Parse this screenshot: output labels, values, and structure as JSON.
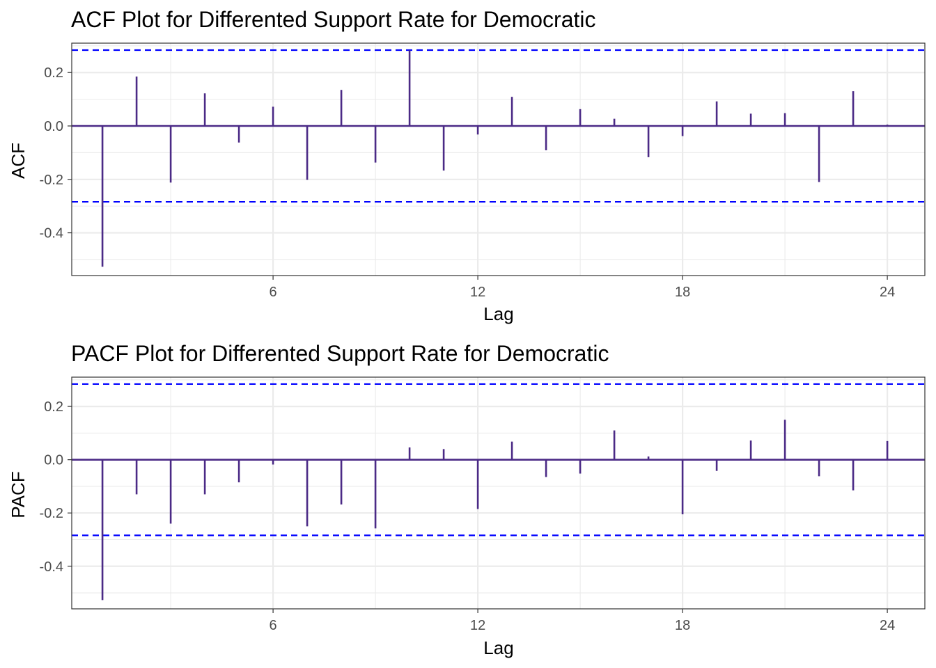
{
  "chart_data": [
    {
      "type": "bar",
      "title": "ACF Plot for Differented Support Rate for Democratic",
      "xlabel": "Lag",
      "ylabel": "ACF",
      "x_ticks": [
        "6",
        "12",
        "18",
        "24"
      ],
      "y_ticks": [
        "-0.4",
        "-0.2",
        "0.0",
        "0.2"
      ],
      "xlim": [
        0.1,
        25.1
      ],
      "ylim": [
        -0.56,
        0.31
      ],
      "grid": true,
      "confidence_limit": 0.284,
      "colors": {
        "bars": "#4b2a86",
        "confidence": "#0000ff",
        "grid": "#ebebeb"
      },
      "lags": [
        1,
        2,
        3,
        4,
        5,
        6,
        7,
        8,
        9,
        10,
        11,
        12,
        13,
        14,
        15,
        16,
        17,
        18,
        19,
        20,
        21,
        22,
        23,
        24
      ],
      "values": [
        -0.527,
        0.185,
        -0.212,
        0.122,
        -0.062,
        0.072,
        -0.202,
        0.135,
        -0.137,
        0.283,
        -0.167,
        -0.032,
        0.109,
        -0.091,
        0.063,
        0.027,
        -0.117,
        -0.038,
        0.092,
        0.046,
        0.048,
        -0.21,
        0.13,
        0.005
      ]
    },
    {
      "type": "bar",
      "title": "PACF Plot for Differented Support Rate for Democratic",
      "xlabel": "Lag",
      "ylabel": "PACF",
      "x_ticks": [
        "6",
        "12",
        "18",
        "24"
      ],
      "y_ticks": [
        "-0.4",
        "-0.2",
        "0.0",
        "0.2"
      ],
      "xlim": [
        0.1,
        25.1
      ],
      "ylim": [
        -0.56,
        0.31
      ],
      "grid": true,
      "confidence_limit": 0.284,
      "colors": {
        "bars": "#4b2a86",
        "confidence": "#0000ff",
        "grid": "#ebebeb"
      },
      "lags": [
        1,
        2,
        3,
        4,
        5,
        6,
        7,
        8,
        9,
        10,
        11,
        12,
        13,
        14,
        15,
        16,
        17,
        18,
        19,
        20,
        21,
        22,
        23,
        24
      ],
      "values": [
        -0.527,
        -0.13,
        -0.24,
        -0.13,
        -0.085,
        -0.018,
        -0.25,
        -0.168,
        -0.258,
        0.046,
        0.04,
        -0.185,
        0.068,
        -0.065,
        -0.052,
        0.11,
        0.012,
        -0.205,
        -0.042,
        0.072,
        0.15,
        -0.062,
        -0.115,
        0.07
      ]
    }
  ]
}
